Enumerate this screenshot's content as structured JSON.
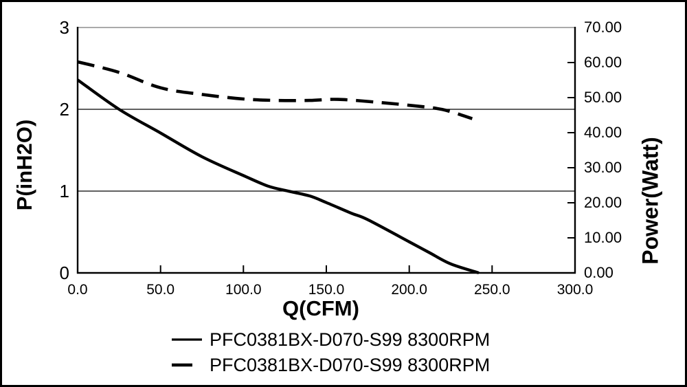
{
  "chart_data": {
    "type": "line",
    "title": "",
    "xlabel": "Q(CFM)",
    "ylabel_left": "P(inH2O)",
    "ylabel_right": "Power(Watt)",
    "xlim": [
      0,
      300
    ],
    "ylim_left": [
      0,
      3
    ],
    "ylim_right": [
      0,
      70
    ],
    "grid": "horizontal gridlines at left-axis ticks 1 and 2; inward tick marks on bottom and right axes",
    "legend_position": "bottom-center",
    "x_ticks": [
      {
        "v": 0,
        "label": "0.0"
      },
      {
        "v": 50,
        "label": "50.0"
      },
      {
        "v": 100,
        "label": "100.0"
      },
      {
        "v": 150,
        "label": "150.0"
      },
      {
        "v": 200,
        "label": "200.0"
      },
      {
        "v": 250,
        "label": "250.0"
      },
      {
        "v": 300,
        "label": "300.0"
      }
    ],
    "y_ticks_left": [
      {
        "v": 0,
        "label": "0"
      },
      {
        "v": 1,
        "label": "1"
      },
      {
        "v": 2,
        "label": "2"
      },
      {
        "v": 3,
        "label": "3"
      }
    ],
    "y_ticks_right": [
      {
        "v": 0,
        "label": "0.00"
      },
      {
        "v": 10,
        "label": "10.00"
      },
      {
        "v": 20,
        "label": "20.00"
      },
      {
        "v": 30,
        "label": "30.00"
      },
      {
        "v": 40,
        "label": "40.00"
      },
      {
        "v": 50,
        "label": "50.00"
      },
      {
        "v": 60,
        "label": "60.00"
      },
      {
        "v": 70,
        "label": "70.00"
      }
    ],
    "series": [
      {
        "name": "PFC0381BX-D070-S99 8300RPM",
        "style": "solid",
        "axis": "left",
        "unit": "inH2O",
        "x": [
          0,
          25,
          50,
          75,
          100,
          115,
          127,
          140,
          150,
          165,
          175,
          200,
          212,
          225,
          242
        ],
        "y": [
          2.36,
          2.0,
          1.71,
          1.42,
          1.19,
          1.06,
          1.0,
          0.94,
          0.86,
          0.73,
          0.65,
          0.38,
          0.25,
          0.11,
          0.0
        ]
      },
      {
        "name": "PFC0381BX-D070-S99 8300RPM",
        "style": "dashed",
        "axis": "right",
        "unit": "Watt",
        "x": [
          0,
          25,
          50,
          75,
          100,
          120,
          140,
          157,
          180,
          200,
          220,
          238
        ],
        "y": [
          60.2,
          57.2,
          52.8,
          50.9,
          49.6,
          49.2,
          49.2,
          49.5,
          48.7,
          47.8,
          46.6,
          44.0
        ]
      }
    ],
    "colors": {
      "line": "#000000",
      "background": "#ffffff",
      "outer_border": "#000000",
      "grid": "#000000",
      "frame_top": "#777777"
    }
  }
}
